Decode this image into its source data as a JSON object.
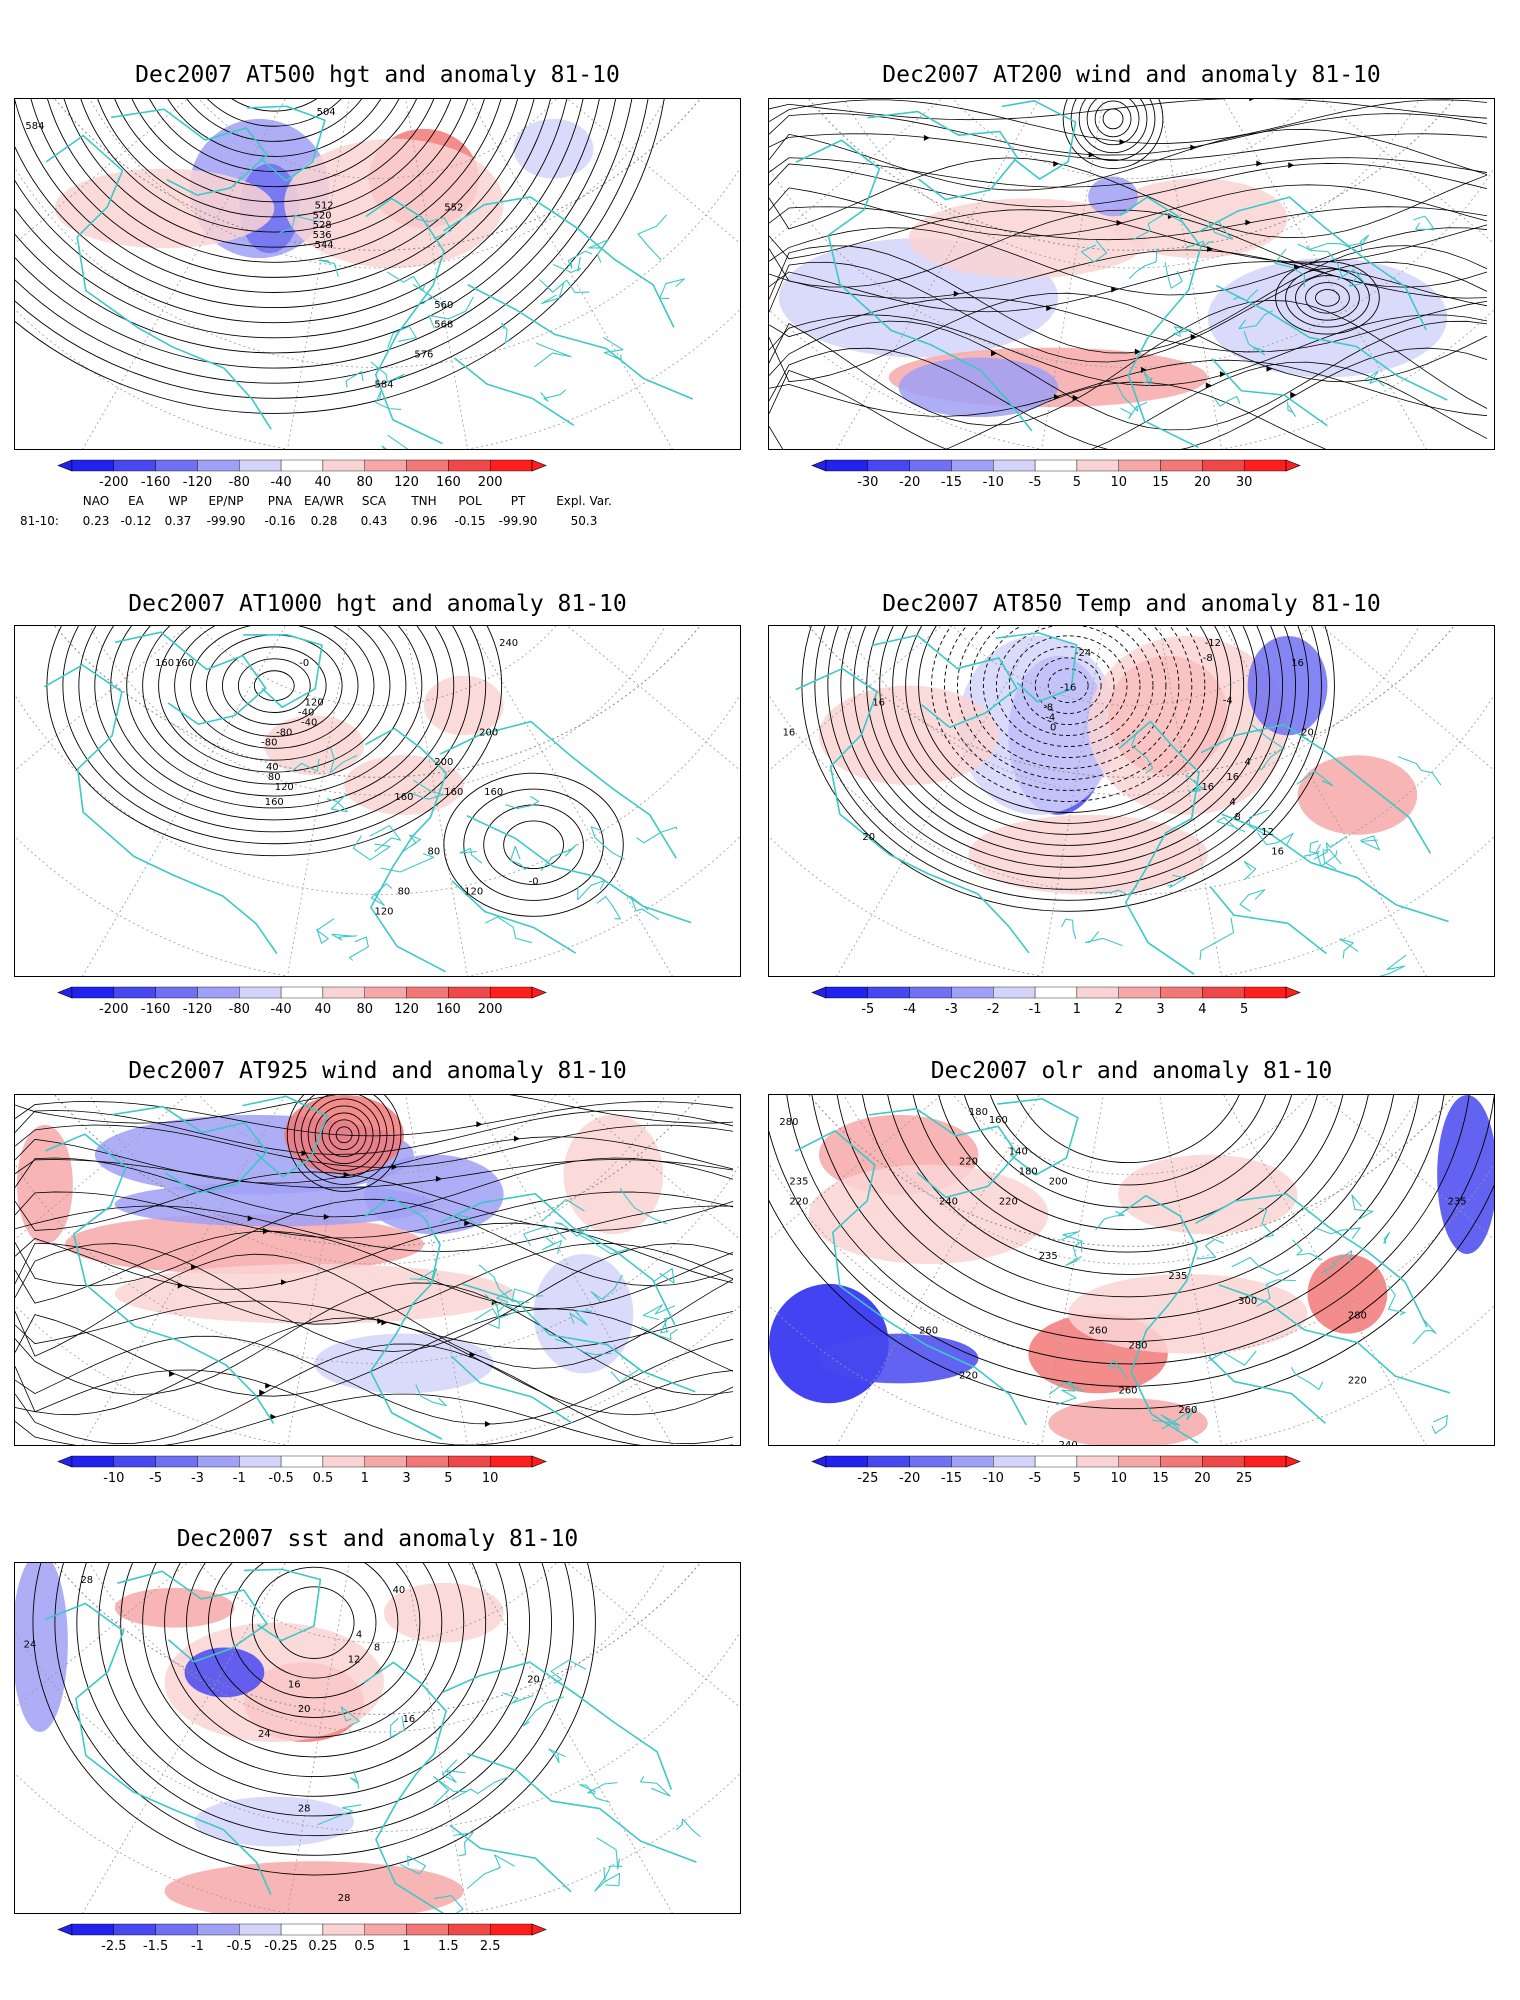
{
  "panels": [
    {
      "id": "p1",
      "title": "Dec2007 AT500 hgt and anomaly 81-10",
      "colorbar": [
        "-200",
        "-160",
        "-120",
        "-80",
        "-40",
        "40",
        "80",
        "120",
        "160",
        "200"
      ],
      "contour_labels": [
        "504",
        "512",
        "520",
        "528",
        "536",
        "544",
        "552",
        "560",
        "568",
        "576",
        "584",
        "584"
      ],
      "anomaly_blobs": [
        {
          "sign": "neg",
          "strength": 3
        },
        {
          "sign": "pos",
          "strength": 3
        },
        {
          "sign": "pos",
          "strength": 1
        },
        {
          "sign": "neg",
          "strength": 1
        }
      ]
    },
    {
      "id": "p2",
      "title": "Dec2007 AT200 wind and anomaly 81-10",
      "colorbar": [
        "-30",
        "-20",
        "-15",
        "-10",
        "-5",
        "5",
        "10",
        "15",
        "20",
        "30"
      ]
    },
    {
      "id": "p3",
      "title": "Dec2007 AT1000 hgt and anomaly 81-10",
      "colorbar": [
        "-200",
        "-160",
        "-120",
        "-80",
        "-40",
        "40",
        "80",
        "120",
        "160",
        "200"
      ],
      "contour_labels": [
        "160",
        "160",
        "-80",
        "120",
        "-40",
        "-40",
        "-80",
        "40",
        "80",
        "120",
        "160",
        "-0",
        "240",
        "200",
        "200",
        "160",
        "160",
        "160",
        "80",
        "120",
        "80",
        "120",
        "-0"
      ]
    },
    {
      "id": "p4",
      "title": "Dec2007 AT850 Temp and anomaly 81-10",
      "colorbar": [
        "-5",
        "-4",
        "-3",
        "-2",
        "-1",
        "1",
        "2",
        "3",
        "4",
        "5"
      ],
      "contour_labels": [
        "16",
        "16",
        "-24",
        "-16",
        "-8",
        "-4",
        "0",
        "-12",
        "-8",
        "-4",
        "4",
        "16",
        "20",
        "16",
        "12",
        "8",
        "4",
        "16",
        "20",
        "16"
      ]
    },
    {
      "id": "p5",
      "title": "Dec2007 AT925 wind and anomaly 81-10",
      "colorbar": [
        "-10",
        "-5",
        "-3",
        "-1",
        "-0.5",
        "0.5",
        "1",
        "3",
        "5",
        "10"
      ]
    },
    {
      "id": "p6",
      "title": "Dec2007 olr and anomaly 81-10",
      "colorbar": [
        "-25",
        "-20",
        "-15",
        "-10",
        "-5",
        "5",
        "10",
        "15",
        "20",
        "25"
      ],
      "contour_labels": [
        "280",
        "180",
        "160",
        "140",
        "180",
        "200",
        "220",
        "240",
        "235",
        "220",
        "220",
        "235",
        "235",
        "260",
        "220",
        "260",
        "280",
        "300",
        "280",
        "220",
        "260",
        "235",
        "240",
        "260"
      ]
    },
    {
      "id": "p7",
      "title": "Dec2007 sst and anomaly 81-10",
      "colorbar": [
        "-2.5",
        "-1.5",
        "-1",
        "-0.5",
        "-0.25",
        "0.25",
        "0.5",
        "1",
        "1.5",
        "2.5"
      ],
      "contour_labels": [
        "28",
        "24",
        "4",
        "8",
        "12",
        "16",
        "20",
        "24",
        "28",
        "40",
        "16",
        "20",
        "28"
      ]
    }
  ],
  "teleconnection": {
    "headers": [
      "NAO",
      "EA",
      "WP",
      "EP/NP",
      "PNA",
      "EA/WR",
      "SCA",
      "TNH",
      "POL",
      "PT",
      "Expl. Var."
    ],
    "row_label": "81-10:",
    "values": [
      "0.23",
      "-0.12",
      "0.37",
      "-99.90",
      "-0.16",
      "0.28",
      "0.43",
      "0.96",
      "-0.15",
      "-99.90",
      "50.3"
    ]
  },
  "colors": {
    "coast": "#3cc8c8",
    "neg": [
      "#2222ee",
      "#4848f0",
      "#7070f2",
      "#a0a0f6",
      "#d4d4fa"
    ],
    "pos": [
      "#fad4d4",
      "#f6a8a8",
      "#f27878",
      "#ee4848",
      "#ff1e1e"
    ]
  }
}
